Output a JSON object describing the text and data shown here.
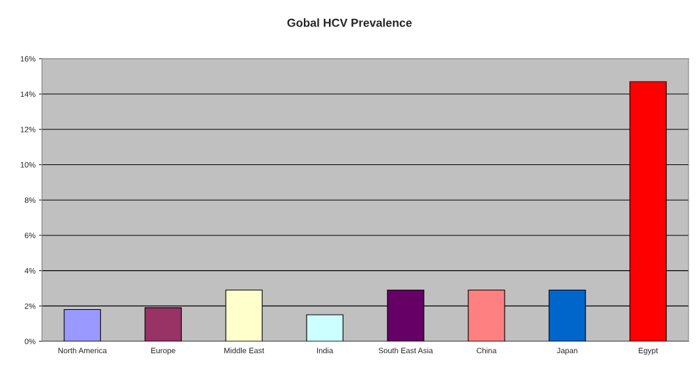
{
  "chart_data": {
    "type": "bar",
    "title": "Gobal HCV Prevalence",
    "categories": [
      "North America",
      "Europe",
      "Middle East",
      "India",
      "South East Asia",
      "China",
      "Japan",
      "Egypt"
    ],
    "values": [
      1.8,
      1.9,
      2.9,
      1.5,
      2.9,
      2.9,
      2.9,
      14.7
    ],
    "colors": [
      "#9999ff",
      "#993366",
      "#ffffcc",
      "#ccffff",
      "#660066",
      "#ff8080",
      "#0066cc",
      "#ff0000"
    ],
    "ylim": [
      0,
      16
    ],
    "yticks": [
      {
        "value": 0,
        "label": "0%"
      },
      {
        "value": 2,
        "label": "2%"
      },
      {
        "value": 4,
        "label": "4%"
      },
      {
        "value": 6,
        "label": "6%"
      },
      {
        "value": 8,
        "label": "8%"
      },
      {
        "value": 10,
        "label": "10%"
      },
      {
        "value": 12,
        "label": "12%"
      },
      {
        "value": 14,
        "label": "14%"
      },
      {
        "value": 16,
        "label": "16%"
      }
    ],
    "grid": "y",
    "legend": false
  }
}
